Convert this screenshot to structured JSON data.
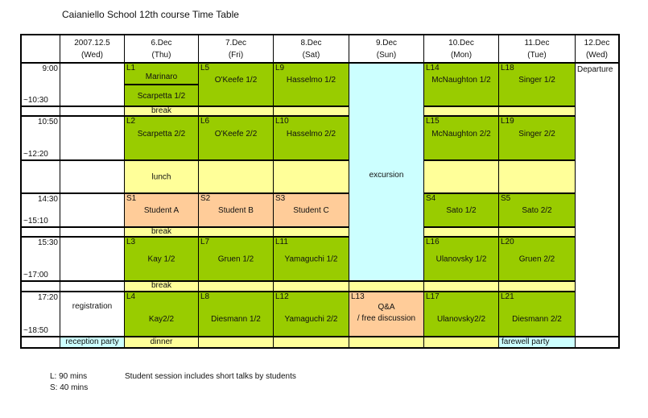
{
  "title": "Caianiello School 12th course   Time Table",
  "headers": [
    {
      "date": "2007.12.5",
      "day": "(Wed)"
    },
    {
      "date": "6.Dec",
      "day": "(Thu)"
    },
    {
      "date": "7.Dec",
      "day": "(Fri)"
    },
    {
      "date": "8.Dec",
      "day": "(Sat)"
    },
    {
      "date": "9.Dec",
      "day": "(Sun)"
    },
    {
      "date": "10.Dec",
      "day": "(Mon)"
    },
    {
      "date": "11.Dec",
      "day": "(Tue)"
    },
    {
      "date": "12.Dec",
      "day": "(Wed)"
    }
  ],
  "times": [
    {
      "start": "9:00",
      "end": "~10:30"
    },
    {
      "start": "10:50",
      "end": "~12:20"
    },
    {
      "start": "14:30",
      "end": "~15:10"
    },
    {
      "start": "15:30",
      "end": "~17:00"
    },
    {
      "start": "17:20",
      "end": "~18:50"
    }
  ],
  "labels": {
    "break": "break",
    "lunch": "lunch",
    "dinner": "dinner",
    "excursion": "excursion",
    "departure": "Departure",
    "registration": "registration",
    "reception": "reception party",
    "farewell": "farewell party"
  },
  "sessions": {
    "L1": {
      "code": "L1",
      "name": "Marinaro"
    },
    "L1b": {
      "name": "Scarpetta 1/2"
    },
    "L2": {
      "code": "L2",
      "name": "Scarpetta 2/2"
    },
    "L3": {
      "code": "L3",
      "name": "Kay 1/2"
    },
    "L4": {
      "code": "L4",
      "name": "Kay2/2"
    },
    "L5": {
      "code": "L5",
      "name": "O'Keefe 1/2"
    },
    "L6": {
      "code": "L6",
      "name": "O'Keefe 2/2"
    },
    "L7": {
      "code": "L7",
      "name": "Gruen 1/2"
    },
    "L8": {
      "code": "L8",
      "name": "Diesmann 1/2"
    },
    "L9": {
      "code": "L9",
      "name": "Hasselmo 1/2"
    },
    "L10": {
      "code": "L10",
      "name": "Hasselmo 2/2"
    },
    "L11": {
      "code": "L11",
      "name": "Yamaguchi 1/2"
    },
    "L12": {
      "code": "L12",
      "name": "Yamaguchi 2/2"
    },
    "L13": {
      "code": "L13",
      "name": "Q&A",
      "name2": "/ free discussion"
    },
    "L14": {
      "code": "L14",
      "name": "McNaughton 1/2"
    },
    "L15": {
      "code": "L15",
      "name": "McNaughton 2/2"
    },
    "L16": {
      "code": "L16",
      "name": "Ulanovsky 1/2"
    },
    "L17": {
      "code": "L17",
      "name": "Ulanovsky2/2"
    },
    "L18": {
      "code": "L18",
      "name": "Singer 1/2"
    },
    "L19": {
      "code": "L19",
      "name": "Singer 2/2"
    },
    "L20": {
      "code": "L20",
      "name": "Gruen 2/2"
    },
    "L21": {
      "code": "L21",
      "name": "Diesmann 2/2"
    },
    "S1": {
      "code": "S1",
      "name": "Student  A"
    },
    "S2": {
      "code": "S2",
      "name": "Student B"
    },
    "S3": {
      "code": "S3",
      "name": "Student C"
    },
    "S4": {
      "code": "S4",
      "name": "Sato 1/2"
    },
    "S5": {
      "code": "S5",
      "name": "Sato 2/2"
    }
  },
  "legend": {
    "l": "L:  90 mins",
    "s": "S:  40 mins",
    "note": "Student session includes short talks by students"
  },
  "colors": {
    "lecture": "#99cc00",
    "break": "#ffff99",
    "student": "#ffcc99",
    "event": "#ccffff"
  }
}
